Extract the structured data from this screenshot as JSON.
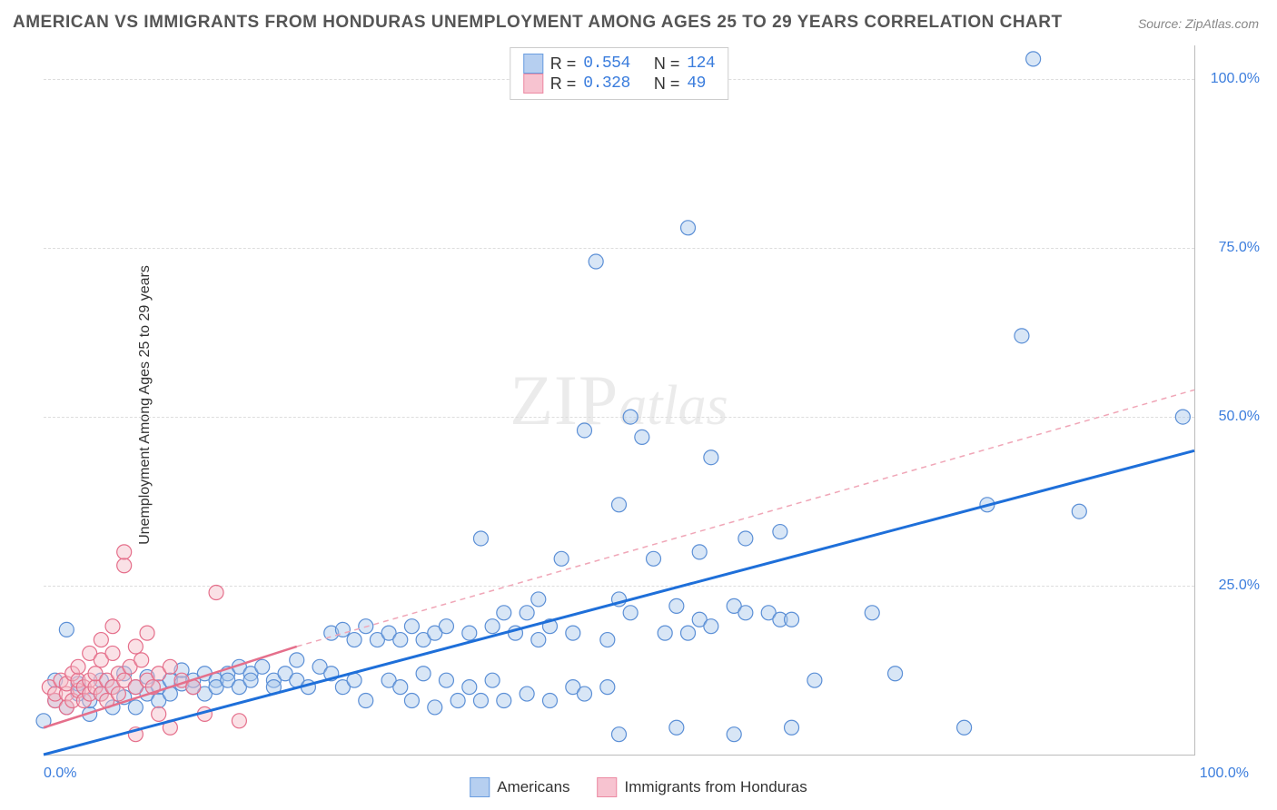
{
  "title": "AMERICAN VS IMMIGRANTS FROM HONDURAS UNEMPLOYMENT AMONG AGES 25 TO 29 YEARS CORRELATION CHART",
  "source": "Source: ZipAtlas.com",
  "ylabel": "Unemployment Among Ages 25 to 29 years",
  "watermark": {
    "zip": "ZIP",
    "atlas": "atlas"
  },
  "chart": {
    "type": "scatter",
    "xlim": [
      0,
      100
    ],
    "ylim": [
      0,
      105
    ],
    "x_ticks": [
      "0.0%",
      "100.0%"
    ],
    "y_ticks": [
      {
        "value": 25,
        "label": "25.0%"
      },
      {
        "value": 50,
        "label": "50.0%"
      },
      {
        "value": 75,
        "label": "75.0%"
      },
      {
        "value": 100,
        "label": "100.0%"
      }
    ],
    "grid_color": "#dddddd",
    "border_color": "#bbbbbb",
    "background_color": "#ffffff",
    "marker_radius": 8,
    "marker_opacity": 0.45,
    "series": [
      {
        "id": "americans",
        "label": "Americans",
        "fill_color": "#a8c8ec",
        "stroke_color": "#5b8fd6",
        "swatch_fill": "#b6cff0",
        "swatch_border": "#6a9de0",
        "R": "0.554",
        "N": "124",
        "regression": {
          "color": "#1e6fd9",
          "width": 3,
          "dash": "none",
          "x1": 0,
          "y1": 0,
          "x2": 100,
          "y2": 45
        },
        "points": [
          [
            0,
            5
          ],
          [
            1,
            11
          ],
          [
            1,
            8
          ],
          [
            2,
            18.5
          ],
          [
            2,
            7
          ],
          [
            3,
            9
          ],
          [
            3,
            10.5
          ],
          [
            4,
            6
          ],
          [
            4,
            8
          ],
          [
            5,
            9
          ],
          [
            5,
            11
          ],
          [
            6,
            7
          ],
          [
            6,
            10
          ],
          [
            7,
            8.5
          ],
          [
            7,
            12
          ],
          [
            8,
            10
          ],
          [
            8,
            7
          ],
          [
            9,
            9
          ],
          [
            9,
            11.5
          ],
          [
            10,
            10
          ],
          [
            10,
            8
          ],
          [
            11,
            11
          ],
          [
            11,
            9
          ],
          [
            12,
            10.5
          ],
          [
            12,
            12.5
          ],
          [
            13,
            10
          ],
          [
            13,
            11
          ],
          [
            14,
            12
          ],
          [
            14,
            9
          ],
          [
            15,
            11
          ],
          [
            15,
            10
          ],
          [
            16,
            12
          ],
          [
            16,
            11
          ],
          [
            17,
            10
          ],
          [
            17,
            13
          ],
          [
            18,
            12
          ],
          [
            18,
            11
          ],
          [
            19,
            13
          ],
          [
            20,
            11
          ],
          [
            20,
            10
          ],
          [
            21,
            12
          ],
          [
            22,
            14
          ],
          [
            22,
            11
          ],
          [
            23,
            10
          ],
          [
            24,
            13
          ],
          [
            25,
            18
          ],
          [
            25,
            12
          ],
          [
            26,
            10
          ],
          [
            26,
            18.5
          ],
          [
            27,
            17
          ],
          [
            27,
            11
          ],
          [
            28,
            8
          ],
          [
            28,
            19
          ],
          [
            29,
            17
          ],
          [
            30,
            11
          ],
          [
            30,
            18
          ],
          [
            31,
            17
          ],
          [
            31,
            10
          ],
          [
            32,
            8
          ],
          [
            32,
            19
          ],
          [
            33,
            17
          ],
          [
            33,
            12
          ],
          [
            34,
            7
          ],
          [
            34,
            18
          ],
          [
            35,
            11
          ],
          [
            35,
            19
          ],
          [
            36,
            8
          ],
          [
            37,
            10
          ],
          [
            37,
            18
          ],
          [
            38,
            8
          ],
          [
            38,
            32
          ],
          [
            39,
            11
          ],
          [
            39,
            19
          ],
          [
            40,
            8
          ],
          [
            40,
            21
          ],
          [
            41,
            18
          ],
          [
            42,
            9
          ],
          [
            42,
            21
          ],
          [
            43,
            17
          ],
          [
            43,
            23
          ],
          [
            44,
            19
          ],
          [
            44,
            8
          ],
          [
            45,
            29
          ],
          [
            46,
            18
          ],
          [
            46,
            10
          ],
          [
            47,
            9
          ],
          [
            47,
            48
          ],
          [
            48,
            73
          ],
          [
            49,
            17
          ],
          [
            49,
            10
          ],
          [
            50,
            37
          ],
          [
            50,
            3
          ],
          [
            50,
            23
          ],
          [
            51,
            50
          ],
          [
            51,
            21
          ],
          [
            52,
            47
          ],
          [
            53,
            29
          ],
          [
            54,
            18
          ],
          [
            55,
            22
          ],
          [
            55,
            4
          ],
          [
            56,
            18
          ],
          [
            56,
            78
          ],
          [
            57,
            30
          ],
          [
            57,
            20
          ],
          [
            58,
            19
          ],
          [
            58,
            44
          ],
          [
            60,
            22
          ],
          [
            60,
            3
          ],
          [
            61,
            32
          ],
          [
            61,
            21
          ],
          [
            63,
            21
          ],
          [
            64,
            33
          ],
          [
            64,
            20
          ],
          [
            65,
            20
          ],
          [
            65,
            4
          ],
          [
            67,
            11
          ],
          [
            72,
            21
          ],
          [
            74,
            12
          ],
          [
            80,
            4
          ],
          [
            82,
            37
          ],
          [
            85,
            62
          ],
          [
            86,
            103
          ],
          [
            90,
            36
          ],
          [
            99,
            50
          ]
        ]
      },
      {
        "id": "honduras",
        "label": "Immigrants from Honduras",
        "fill_color": "#f5bcc8",
        "stroke_color": "#e56f8b",
        "swatch_fill": "#f7c3d0",
        "swatch_border": "#ec8aa3",
        "R": "0.328",
        "N": "49",
        "regression": {
          "solid": {
            "color": "#e56f8b",
            "width": 2.5,
            "x1": 0,
            "y1": 4,
            "x2": 22,
            "y2": 16
          },
          "dashed": {
            "color": "#f0a6b7",
            "width": 1.5,
            "dash": "6,5",
            "x1": 22,
            "y1": 16,
            "x2": 100,
            "y2": 54
          }
        },
        "points": [
          [
            0.5,
            10
          ],
          [
            1,
            8
          ],
          [
            1,
            9
          ],
          [
            1.5,
            11
          ],
          [
            2,
            9
          ],
          [
            2,
            10.5
          ],
          [
            2,
            7
          ],
          [
            2.5,
            12
          ],
          [
            2.5,
            8
          ],
          [
            3,
            9.5
          ],
          [
            3,
            11
          ],
          [
            3,
            13
          ],
          [
            3.5,
            10
          ],
          [
            3.5,
            8
          ],
          [
            4,
            11
          ],
          [
            4,
            9
          ],
          [
            4,
            15
          ],
          [
            4.5,
            10
          ],
          [
            4.5,
            12
          ],
          [
            5,
            9
          ],
          [
            5,
            14
          ],
          [
            5,
            17
          ],
          [
            5.5,
            11
          ],
          [
            5.5,
            8
          ],
          [
            6,
            10
          ],
          [
            6,
            15
          ],
          [
            6,
            19
          ],
          [
            6.5,
            12
          ],
          [
            6.5,
            9
          ],
          [
            7,
            11
          ],
          [
            7,
            28
          ],
          [
            7,
            30
          ],
          [
            7.5,
            13
          ],
          [
            8,
            10
          ],
          [
            8,
            16
          ],
          [
            8,
            3
          ],
          [
            8.5,
            14
          ],
          [
            9,
            11
          ],
          [
            9,
            18
          ],
          [
            9.5,
            10
          ],
          [
            10,
            12
          ],
          [
            10,
            6
          ],
          [
            11,
            13
          ],
          [
            11,
            4
          ],
          [
            12,
            11
          ],
          [
            13,
            10
          ],
          [
            14,
            6
          ],
          [
            15,
            24
          ],
          [
            17,
            5
          ]
        ]
      }
    ]
  },
  "legend_colors": {
    "americans_fill": "#b6cff0",
    "americans_border": "#6a9de0",
    "honduras_fill": "#f7c3d0",
    "honduras_border": "#ec8aa3"
  }
}
